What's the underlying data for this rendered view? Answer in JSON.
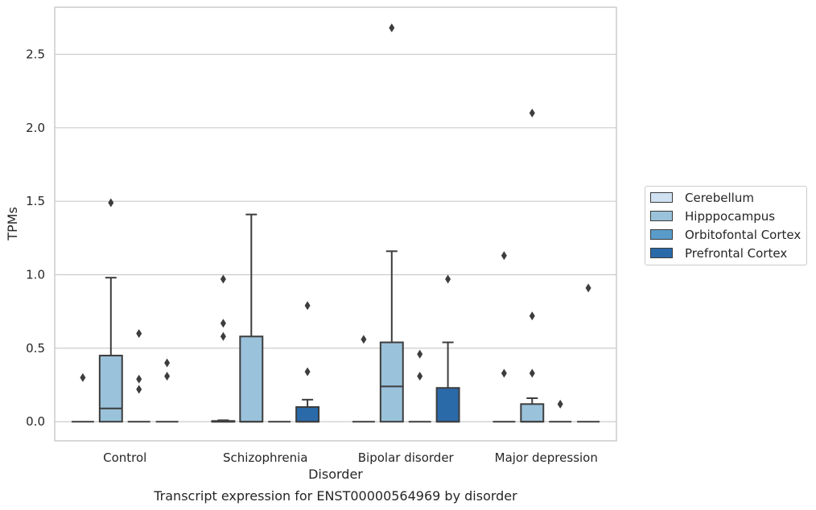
{
  "chart_data": {
    "type": "box",
    "xlabel": "Disorder",
    "ylabel": "TPMs",
    "caption": "Transcript expression for ENST00000564969 by disorder",
    "categories": [
      "Control",
      "Schizophrenia",
      "Bipolar disorder",
      "Major depression"
    ],
    "ylim": [
      -0.13,
      2.82
    ],
    "yticks": [
      "0.0",
      "0.5",
      "1.0",
      "1.5",
      "2.0",
      "2.5"
    ],
    "grid": true,
    "legend_position": "right",
    "series": [
      {
        "name": "Cerebellum",
        "color": "#d0e1f2",
        "boxes": [
          {
            "q1": 0,
            "median": 0,
            "q3": 0,
            "whisker_low": 0,
            "whisker_high": 0,
            "outliers": [
              0.3
            ]
          },
          {
            "q1": 0,
            "median": 0,
            "q3": 0.005,
            "whisker_low": 0,
            "whisker_high": 0.01,
            "outliers": [
              0.58,
              0.67,
              0.97
            ]
          },
          {
            "q1": 0,
            "median": 0,
            "q3": 0,
            "whisker_low": 0,
            "whisker_high": 0,
            "outliers": [
              0.56
            ]
          },
          {
            "q1": 0,
            "median": 0,
            "q3": 0,
            "whisker_low": 0,
            "whisker_high": 0,
            "outliers": [
              0.33,
              1.13
            ]
          }
        ]
      },
      {
        "name": "Hipppocampus",
        "color": "#9ac2db",
        "boxes": [
          {
            "q1": 0,
            "median": 0.09,
            "q3": 0.45,
            "whisker_low": 0,
            "whisker_high": 0.98,
            "outliers": [
              1.49
            ]
          },
          {
            "q1": 0,
            "median": 0,
            "q3": 0.58,
            "whisker_low": 0,
            "whisker_high": 1.41,
            "outliers": []
          },
          {
            "q1": 0,
            "median": 0.24,
            "q3": 0.54,
            "whisker_low": 0,
            "whisker_high": 1.16,
            "outliers": [
              2.68
            ]
          },
          {
            "q1": 0,
            "median": 0,
            "q3": 0.12,
            "whisker_low": 0,
            "whisker_high": 0.16,
            "outliers": [
              0.33,
              0.72,
              2.1
            ]
          }
        ]
      },
      {
        "name": "Orbitofontal Cortex",
        "color": "#5a9cc9",
        "boxes": [
          {
            "q1": 0,
            "median": 0,
            "q3": 0,
            "whisker_low": 0,
            "whisker_high": 0,
            "outliers": [
              0.22,
              0.29,
              0.6
            ]
          },
          {
            "q1": 0,
            "median": 0,
            "q3": 0,
            "whisker_low": 0,
            "whisker_high": 0,
            "outliers": []
          },
          {
            "q1": 0,
            "median": 0,
            "q3": 0,
            "whisker_low": 0,
            "whisker_high": 0,
            "outliers": [
              0.31,
              0.46
            ]
          },
          {
            "q1": 0,
            "median": 0,
            "q3": 0,
            "whisker_low": 0,
            "whisker_high": 0,
            "outliers": [
              0.12
            ]
          }
        ]
      },
      {
        "name": "Prefrontal Cortex",
        "color": "#2a6aa9",
        "boxes": [
          {
            "q1": 0,
            "median": 0,
            "q3": 0,
            "whisker_low": 0,
            "whisker_high": 0,
            "outliers": [
              0.31,
              0.4
            ]
          },
          {
            "q1": 0,
            "median": 0,
            "q3": 0.1,
            "whisker_low": 0,
            "whisker_high": 0.15,
            "outliers": [
              0.34,
              0.79
            ]
          },
          {
            "q1": 0,
            "median": 0,
            "q3": 0.23,
            "whisker_low": 0,
            "whisker_high": 0.54,
            "outliers": [
              0.97
            ]
          },
          {
            "q1": 0,
            "median": 0,
            "q3": 0,
            "whisker_low": 0,
            "whisker_high": 0,
            "outliers": [
              0.91
            ]
          }
        ]
      }
    ]
  }
}
